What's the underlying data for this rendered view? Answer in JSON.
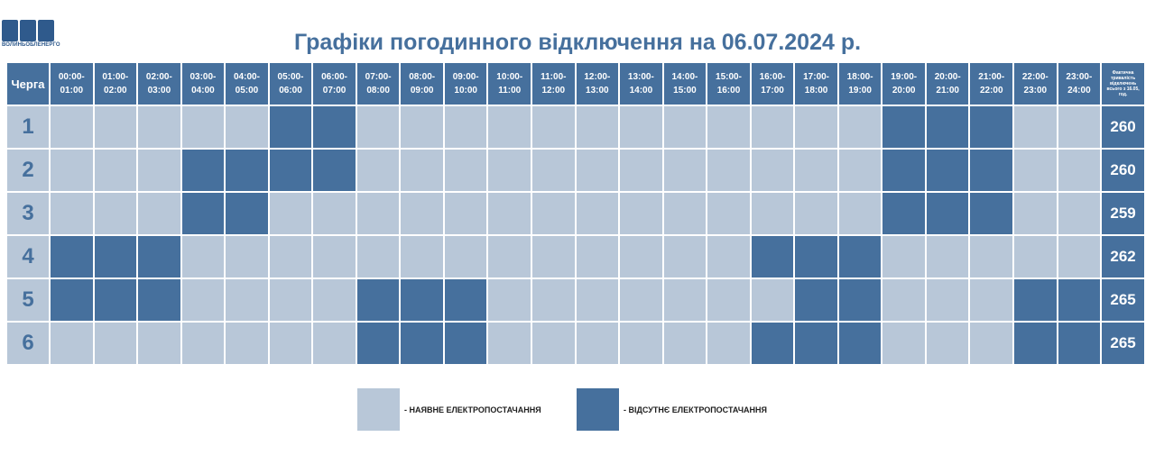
{
  "logo": {
    "text": "ВОЛИНЬОБЛЕНЕРГО"
  },
  "title": "Графіки погодинного відключення на 06.07.2024 р.",
  "table": {
    "queue_header": "Черга",
    "actual_header": "Фактична тривалість відключень всього з 16.05, год.",
    "hours": [
      {
        "from": "00:00-",
        "to": "01:00"
      },
      {
        "from": "01:00-",
        "to": "02:00"
      },
      {
        "from": "02:00-",
        "to": "03:00"
      },
      {
        "from": "03:00-",
        "to": "04:00"
      },
      {
        "from": "04:00-",
        "to": "05:00"
      },
      {
        "from": "05:00-",
        "to": "06:00"
      },
      {
        "from": "06:00-",
        "to": "07:00"
      },
      {
        "from": "07:00-",
        "to": "08:00"
      },
      {
        "from": "08:00-",
        "to": "09:00"
      },
      {
        "from": "09:00-",
        "to": "10:00"
      },
      {
        "from": "10:00-",
        "to": "11:00"
      },
      {
        "from": "11:00-",
        "to": "12:00"
      },
      {
        "from": "12:00-",
        "to": "13:00"
      },
      {
        "from": "13:00-",
        "to": "14:00"
      },
      {
        "from": "14:00-",
        "to": "15:00"
      },
      {
        "from": "15:00-",
        "to": "16:00"
      },
      {
        "from": "16:00-",
        "to": "17:00"
      },
      {
        "from": "17:00-",
        "to": "18:00"
      },
      {
        "from": "18:00-",
        "to": "19:00"
      },
      {
        "from": "19:00-",
        "to": "20:00"
      },
      {
        "from": "20:00-",
        "to": "21:00"
      },
      {
        "from": "21:00-",
        "to": "22:00"
      },
      {
        "from": "22:00-",
        "to": "23:00"
      },
      {
        "from": "23:00-",
        "to": "24:00"
      }
    ],
    "rows": [
      {
        "queue": "1",
        "total": "260",
        "outages": [
          0,
          0,
          0,
          0,
          0,
          1,
          1,
          0,
          0,
          0,
          0,
          0,
          0,
          0,
          0,
          0,
          0,
          0,
          0,
          1,
          1,
          1,
          0,
          0
        ]
      },
      {
        "queue": "2",
        "total": "260",
        "outages": [
          0,
          0,
          0,
          1,
          1,
          1,
          1,
          0,
          0,
          0,
          0,
          0,
          0,
          0,
          0,
          0,
          0,
          0,
          0,
          1,
          1,
          1,
          0,
          0
        ]
      },
      {
        "queue": "3",
        "total": "259",
        "outages": [
          0,
          0,
          0,
          1,
          1,
          0,
          0,
          0,
          0,
          0,
          0,
          0,
          0,
          0,
          0,
          0,
          0,
          0,
          0,
          1,
          1,
          1,
          0,
          0
        ]
      },
      {
        "queue": "4",
        "total": "262",
        "outages": [
          1,
          1,
          1,
          0,
          0,
          0,
          0,
          0,
          0,
          0,
          0,
          0,
          0,
          0,
          0,
          0,
          1,
          1,
          1,
          0,
          0,
          0,
          0,
          0
        ]
      },
      {
        "queue": "5",
        "total": "265",
        "outages": [
          1,
          1,
          1,
          0,
          0,
          0,
          0,
          1,
          1,
          1,
          0,
          0,
          0,
          0,
          0,
          0,
          0,
          1,
          1,
          0,
          0,
          0,
          1,
          1
        ]
      },
      {
        "queue": "6",
        "total": "265",
        "outages": [
          0,
          0,
          0,
          0,
          0,
          0,
          0,
          1,
          1,
          1,
          0,
          0,
          0,
          0,
          0,
          0,
          1,
          1,
          1,
          0,
          0,
          0,
          1,
          1
        ]
      }
    ]
  },
  "legend": {
    "available_label": "- НАЯВНЕ ЕЛЕКТРОПОСТАЧАННЯ",
    "absent_label": "- ВІДСУТНЄ ЕЛЕКТРОПОСТАЧАННЯ"
  },
  "colors": {
    "available": "#b8c7d8",
    "absent": "#46709d"
  }
}
